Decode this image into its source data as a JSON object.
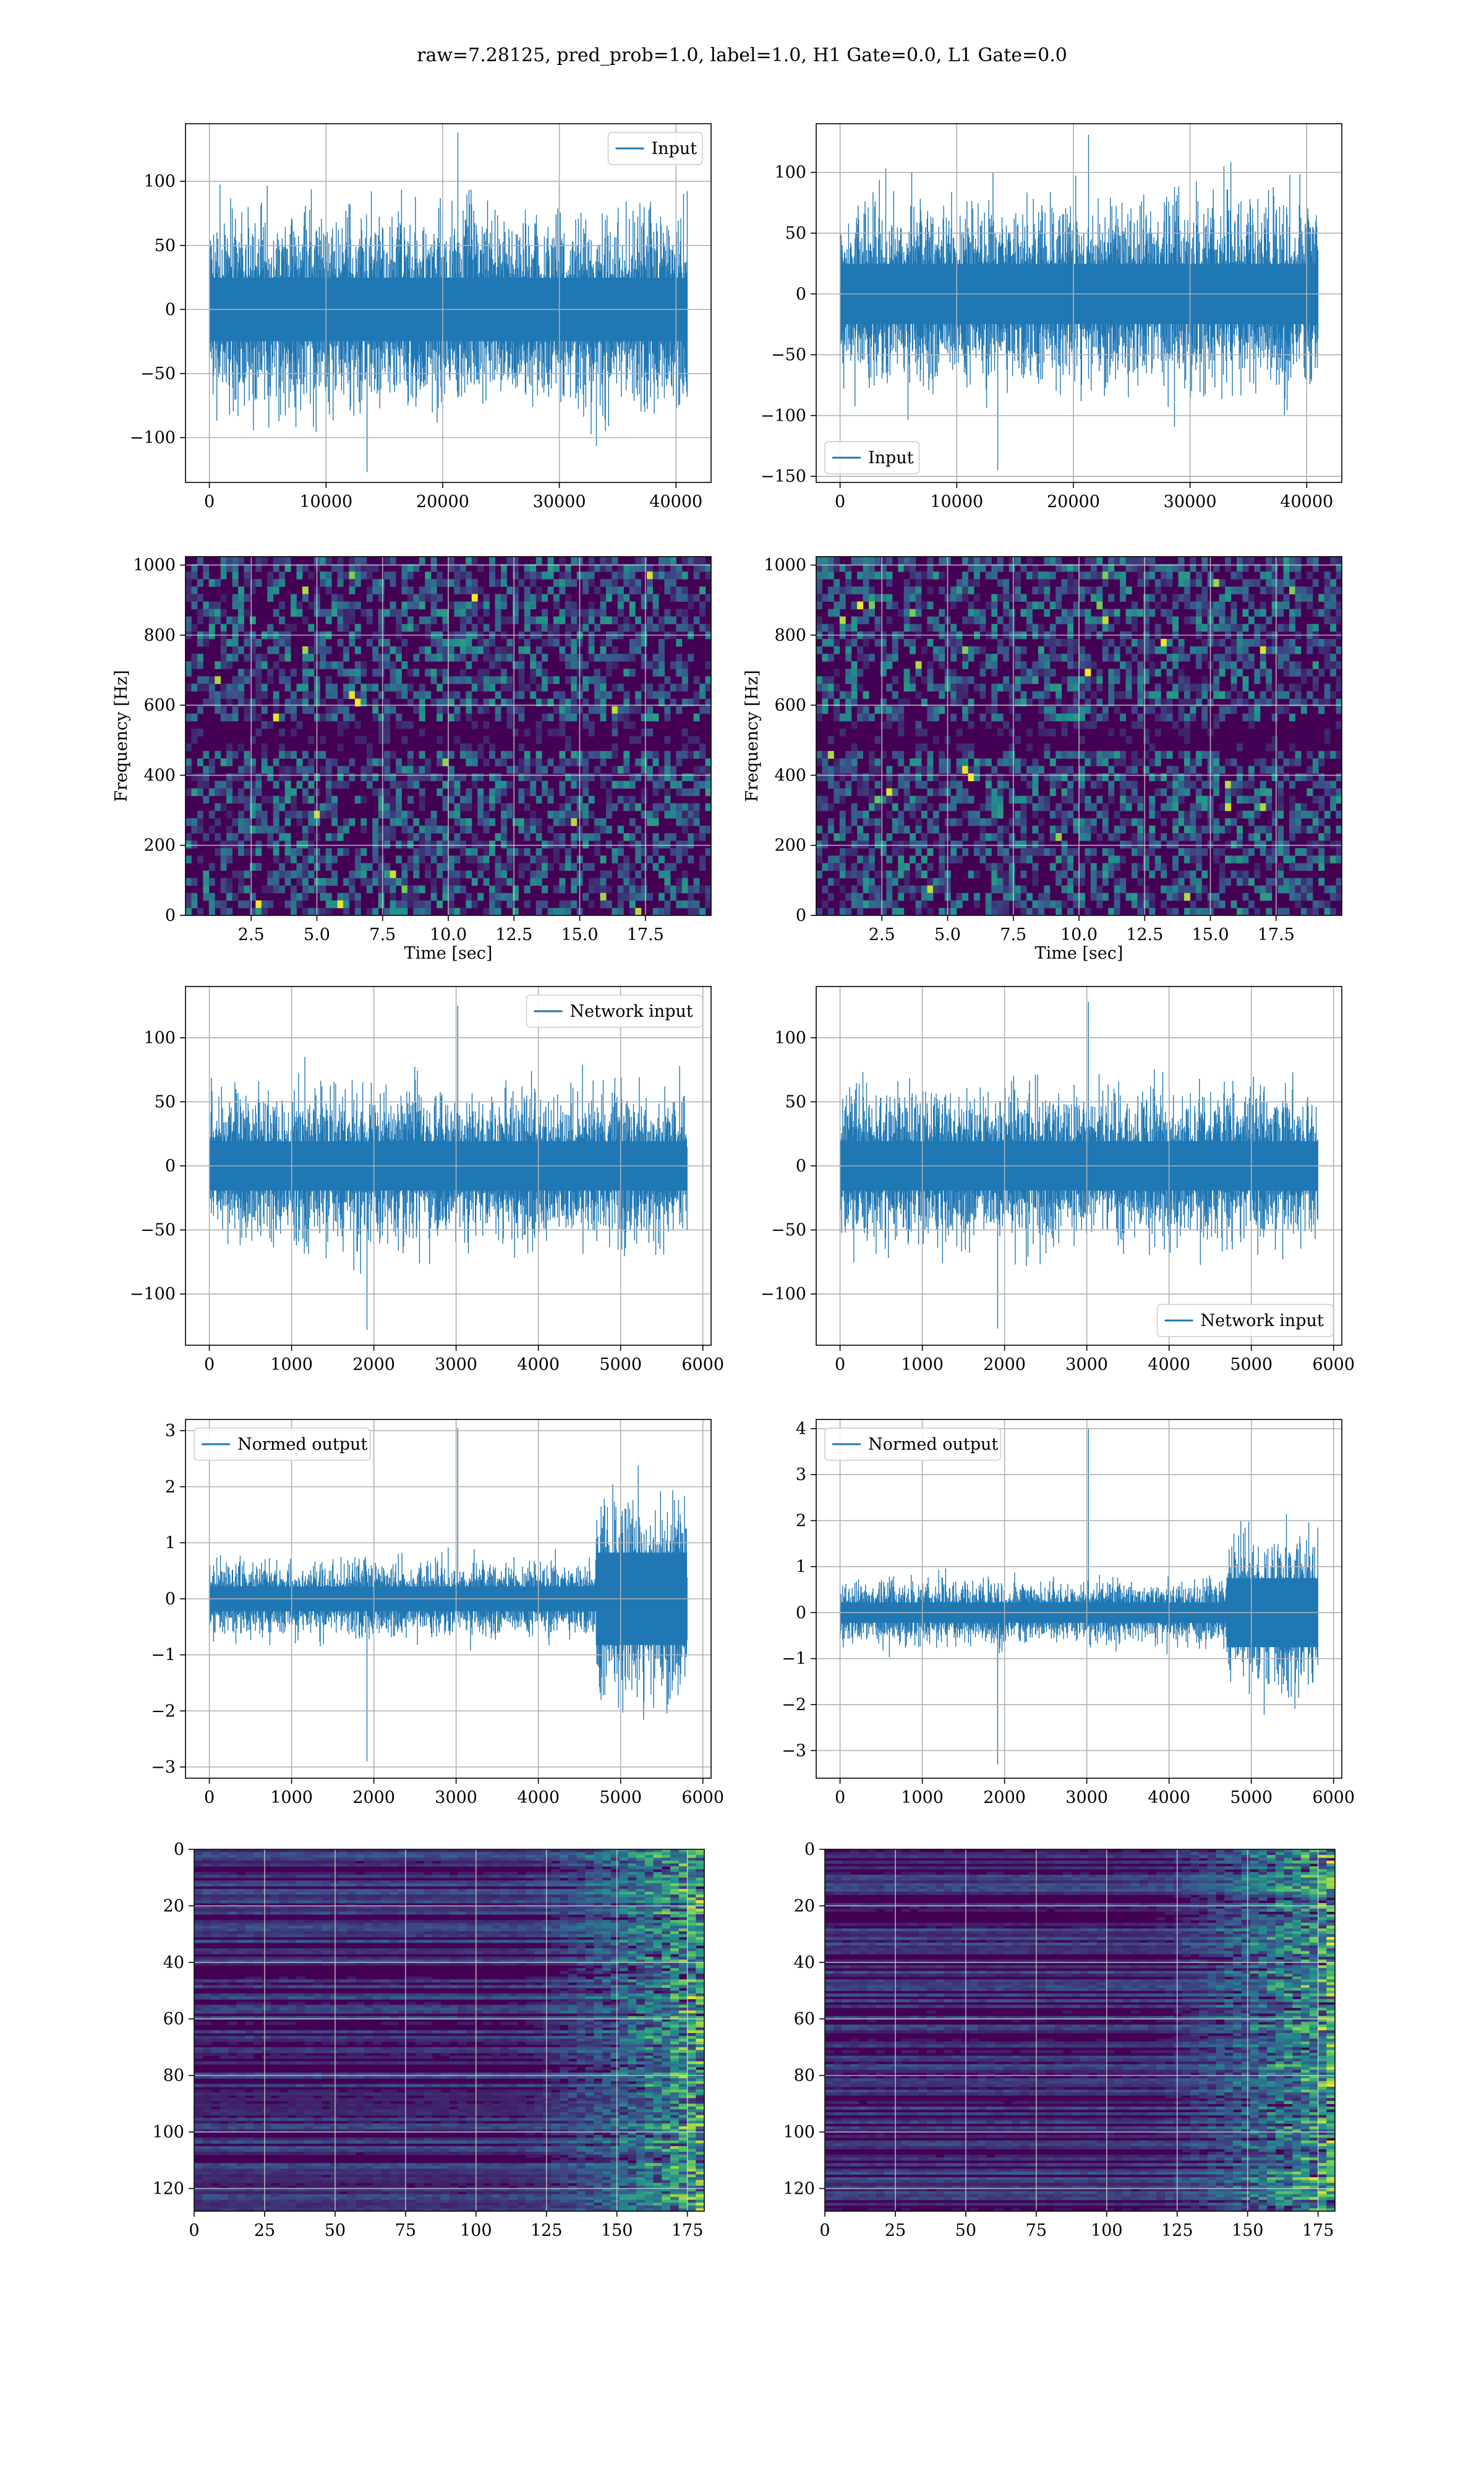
{
  "suptitle": "raw=7.28125, pred_prob=1.0, label=1.0, H1 Gate=0.0, L1 Gate=0.0",
  "colors": {
    "line": "#1f77b4",
    "grid": "#b0b0b0",
    "viridis_dark": "#440154",
    "viridis_mid": "#21908d",
    "viridis_light": "#fde725"
  },
  "chart_data": [
    {
      "id": "input-h1",
      "type": "line",
      "legend": [
        "Input"
      ],
      "legend_loc": "upper right",
      "grid": true,
      "xlim": [
        -2048,
        43008
      ],
      "ylim": [
        -135,
        145
      ],
      "xticks": [
        0,
        10000,
        20000,
        30000,
        40000
      ],
      "xticklabels": [
        "0",
        "10000",
        "20000",
        "30000",
        "40000"
      ],
      "yticks": [
        -100,
        -50,
        0,
        50,
        100
      ],
      "yticklabels": [
        "−100",
        "−50",
        "0",
        "50",
        "100"
      ],
      "signal": {
        "x_range": [
          0,
          40960
        ],
        "envelope": 45,
        "peak": 138,
        "trough": -127
      }
    },
    {
      "id": "input-l1",
      "type": "line",
      "legend": [
        "Input"
      ],
      "legend_loc": "lower left",
      "grid": true,
      "xlim": [
        -2048,
        43008
      ],
      "ylim": [
        -155,
        140
      ],
      "xticks": [
        0,
        10000,
        20000,
        30000,
        40000
      ],
      "xticklabels": [
        "0",
        "10000",
        "20000",
        "30000",
        "40000"
      ],
      "yticks": [
        -150,
        -100,
        -50,
        0,
        50,
        100
      ],
      "yticklabels": [
        "−150",
        "−100",
        "−50",
        "0",
        "50",
        "100"
      ],
      "signal": {
        "x_range": [
          0,
          40960
        ],
        "envelope": 45,
        "peak": 131,
        "trough": -145
      }
    },
    {
      "id": "spec-h1",
      "type": "heatmap",
      "grid": true,
      "xlabel": "Time [sec]",
      "ylabel": "Frequency [Hz]",
      "xlim": [
        0,
        20
      ],
      "ylim": [
        0,
        1024
      ],
      "xticks": [
        2.5,
        5.0,
        7.5,
        10.0,
        12.5,
        15.0,
        17.5
      ],
      "xticklabels": [
        "2.5",
        "5.0",
        "7.5",
        "10.0",
        "12.5",
        "15.0",
        "17.5"
      ],
      "yticks": [
        0,
        200,
        400,
        600,
        800,
        1000
      ],
      "yticklabels": [
        "0",
        "200",
        "400",
        "600",
        "800",
        "1000"
      ]
    },
    {
      "id": "spec-l1",
      "type": "heatmap",
      "grid": true,
      "xlabel": "Time [sec]",
      "ylabel": "Frequency [Hz]",
      "xlim": [
        0,
        20
      ],
      "ylim": [
        0,
        1024
      ],
      "xticks": [
        2.5,
        5.0,
        7.5,
        10.0,
        12.5,
        15.0,
        17.5
      ],
      "xticklabels": [
        "2.5",
        "5.0",
        "7.5",
        "10.0",
        "12.5",
        "15.0",
        "17.5"
      ],
      "yticks": [
        0,
        200,
        400,
        600,
        800,
        1000
      ],
      "yticklabels": [
        "0",
        "200",
        "400",
        "600",
        "800",
        "1000"
      ]
    },
    {
      "id": "net-h1",
      "type": "line",
      "legend": [
        "Network input"
      ],
      "legend_loc": "upper right",
      "grid": true,
      "xlim": [
        -290,
        6100
      ],
      "ylim": [
        -140,
        140
      ],
      "xticks": [
        0,
        1000,
        2000,
        3000,
        4000,
        5000,
        6000
      ],
      "xticklabels": [
        "0",
        "1000",
        "2000",
        "3000",
        "4000",
        "5000",
        "6000"
      ],
      "yticks": [
        -100,
        -50,
        0,
        50,
        100
      ],
      "yticklabels": [
        "−100",
        "−50",
        "0",
        "50",
        "100"
      ],
      "signal": {
        "x_range": [
          0,
          5808
        ],
        "envelope": 35,
        "peak": 125,
        "trough": -128
      }
    },
    {
      "id": "net-l1",
      "type": "line",
      "legend": [
        "Network input"
      ],
      "legend_loc": "lower right",
      "grid": true,
      "xlim": [
        -290,
        6100
      ],
      "ylim": [
        -140,
        140
      ],
      "xticks": [
        0,
        1000,
        2000,
        3000,
        4000,
        5000,
        6000
      ],
      "xticklabels": [
        "0",
        "1000",
        "2000",
        "3000",
        "4000",
        "5000",
        "6000"
      ],
      "yticks": [
        -100,
        -50,
        0,
        50,
        100
      ],
      "yticklabels": [
        "−100",
        "−50",
        "0",
        "50",
        "100"
      ],
      "signal": {
        "x_range": [
          0,
          5808
        ],
        "envelope": 35,
        "peak": 128,
        "trough": -127
      }
    },
    {
      "id": "norm-h1",
      "type": "line",
      "legend": [
        "Normed output"
      ],
      "legend_loc": "upper left",
      "grid": true,
      "xlim": [
        -290,
        6100
      ],
      "ylim": [
        -3.2,
        3.2
      ],
      "xticks": [
        0,
        1000,
        2000,
        3000,
        4000,
        5000,
        6000
      ],
      "xticklabels": [
        "0",
        "1000",
        "2000",
        "3000",
        "4000",
        "5000",
        "6000"
      ],
      "yticks": [
        -3,
        -2,
        -1,
        0,
        1,
        2,
        3
      ],
      "yticklabels": [
        "−3",
        "−2",
        "−1",
        "0",
        "1",
        "2",
        "3"
      ],
      "signal": {
        "x_range": [
          0,
          5808
        ],
        "envelope": 0.4,
        "burst_start": 4700,
        "burst_envelope": 1.1,
        "peak": 3.05,
        "trough": -2.9
      }
    },
    {
      "id": "norm-l1",
      "type": "line",
      "legend": [
        "Normed output"
      ],
      "legend_loc": "upper left",
      "grid": true,
      "xlim": [
        -290,
        6100
      ],
      "ylim": [
        -3.6,
        4.2
      ],
      "xticks": [
        0,
        1000,
        2000,
        3000,
        4000,
        5000,
        6000
      ],
      "xticklabels": [
        "0",
        "1000",
        "2000",
        "3000",
        "4000",
        "5000",
        "6000"
      ],
      "yticks": [
        -3,
        -2,
        -1,
        0,
        1,
        2,
        3,
        4
      ],
      "yticklabels": [
        "−3",
        "−2",
        "−1",
        "0",
        "1",
        "2",
        "3",
        "4"
      ],
      "signal": {
        "x_range": [
          0,
          5808
        ],
        "envelope": 0.4,
        "burst_start": 4700,
        "burst_envelope": 1.0,
        "peak": 4.0,
        "trough": -3.3
      }
    },
    {
      "id": "feat-h1",
      "type": "heatmap",
      "grid": true,
      "xlim": [
        0,
        181
      ],
      "ylim": [
        128,
        0
      ],
      "xticks": [
        0,
        25,
        50,
        75,
        100,
        125,
        150,
        175
      ],
      "xticklabels": [
        "0",
        "25",
        "50",
        "75",
        "100",
        "125",
        "150",
        "175"
      ],
      "yticks": [
        0,
        20,
        40,
        60,
        80,
        100,
        120
      ],
      "yticklabels": [
        "0",
        "20",
        "40",
        "60",
        "80",
        "100",
        "120"
      ]
    },
    {
      "id": "feat-l1",
      "type": "heatmap",
      "grid": true,
      "xlim": [
        0,
        181
      ],
      "ylim": [
        128,
        0
      ],
      "xticks": [
        0,
        25,
        50,
        75,
        100,
        125,
        150,
        175
      ],
      "xticklabels": [
        "0",
        "25",
        "50",
        "75",
        "100",
        "125",
        "150",
        "175"
      ],
      "yticks": [
        0,
        20,
        40,
        60,
        80,
        100,
        120
      ],
      "yticklabels": [
        "0",
        "20",
        "40",
        "60",
        "80",
        "100",
        "120"
      ]
    }
  ]
}
